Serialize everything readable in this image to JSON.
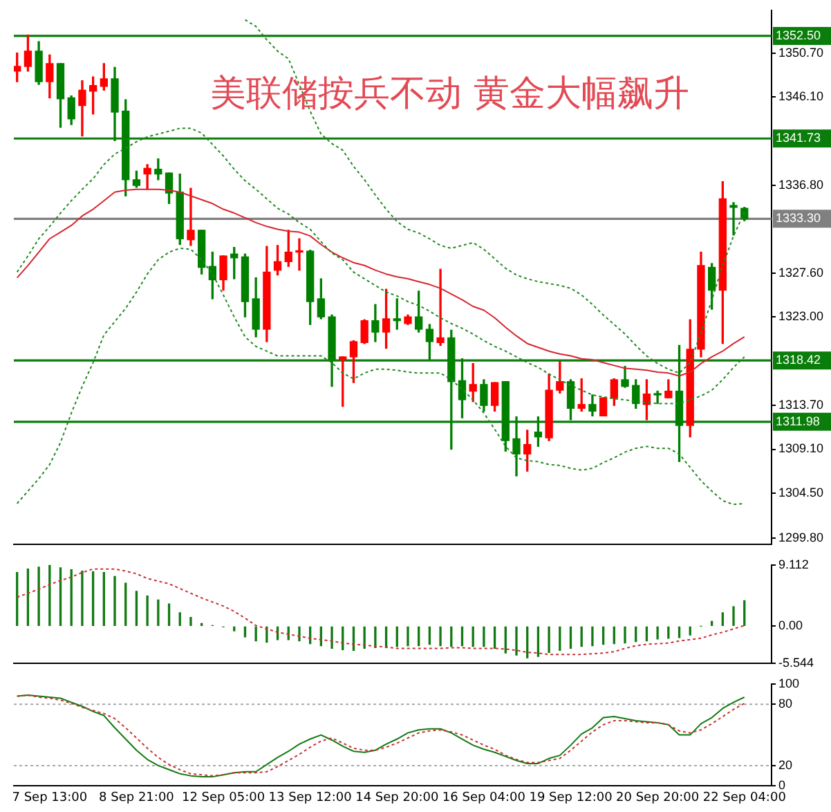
{
  "chart_data": [
    {
      "type": "candlestick",
      "title": "美联储按兵不动 黄金大幅飙升",
      "tick_labels": "y",
      "ohlc": [
        [
          1348.8,
          1350.7,
          1347.7,
          1349.3
        ],
        [
          1349.3,
          1352.6,
          1348.8,
          1350.9
        ],
        [
          1350.9,
          1351.9,
          1347.4,
          1347.7
        ],
        [
          1347.7,
          1350.5,
          1346.0,
          1349.6
        ],
        [
          1349.6,
          1349.6,
          1342.9,
          1345.9
        ],
        [
          1346.0,
          1346.2,
          1343.2,
          1343.8
        ],
        [
          1345.2,
          1347.8,
          1342.0,
          1346.8
        ],
        [
          1346.7,
          1348.2,
          1344.3,
          1347.3
        ],
        [
          1347.2,
          1349.6,
          1346.8,
          1348.0
        ],
        [
          1348.0,
          1349.2,
          1341.5,
          1344.5
        ],
        [
          1344.6,
          1345.8,
          1335.7,
          1337.4
        ],
        [
          1337.4,
          1338.3,
          1336.6,
          1336.8
        ],
        [
          1338.0,
          1339.0,
          1336.4,
          1338.6
        ],
        [
          1338.5,
          1339.6,
          1337.4,
          1338.0
        ],
        [
          1338.1,
          1338.1,
          1334.9,
          1336.0
        ],
        [
          1336.1,
          1338.0,
          1330.6,
          1331.2
        ],
        [
          1331.1,
          1336.5,
          1330.5,
          1332.1
        ],
        [
          1332.1,
          1332.1,
          1327.5,
          1328.2
        ],
        [
          1328.3,
          1329.8,
          1324.9,
          1326.9
        ],
        [
          1326.9,
          1329.4,
          1325.8,
          1329.4
        ],
        [
          1329.6,
          1330.3,
          1327.0,
          1329.2
        ],
        [
          1329.3,
          1329.6,
          1323.0,
          1324.6
        ],
        [
          1324.9,
          1327.1,
          1320.9,
          1321.7
        ],
        [
          1321.7,
          1330.4,
          1320.4,
          1327.7
        ],
        [
          1327.9,
          1330.5,
          1327.4,
          1328.8
        ],
        [
          1328.8,
          1332.1,
          1328.3,
          1329.8
        ],
        [
          1329.8,
          1331.2,
          1327.9,
          1329.9
        ],
        [
          1329.9,
          1330.0,
          1322.2,
          1324.6
        ],
        [
          1324.9,
          1327.0,
          1322.8,
          1323.0
        ],
        [
          1323.0,
          1323.2,
          1315.7,
          1318.5
        ],
        [
          1318.5,
          1318.8,
          1313.6,
          1318.8
        ],
        [
          1318.8,
          1320.5,
          1316.1,
          1320.4
        ],
        [
          1320.3,
          1322.7,
          1320.2,
          1322.6
        ],
        [
          1322.6,
          1324.3,
          1320.4,
          1321.4
        ],
        [
          1321.4,
          1325.9,
          1319.7,
          1322.8
        ],
        [
          1322.8,
          1324.9,
          1321.7,
          1322.6
        ],
        [
          1322.3,
          1323.2,
          1322.2,
          1323.0
        ],
        [
          1323.0,
          1325.7,
          1321.4,
          1321.7
        ],
        [
          1321.7,
          1322.2,
          1318.5,
          1320.4
        ],
        [
          1320.3,
          1328.0,
          1320.0,
          1320.8
        ],
        [
          1320.8,
          1321.6,
          1309.1,
          1316.2
        ],
        [
          1316.3,
          1318.6,
          1312.4,
          1314.3
        ],
        [
          1315.2,
          1318.1,
          1314.1,
          1315.9
        ],
        [
          1315.9,
          1316.4,
          1313.1,
          1313.7
        ],
        [
          1313.7,
          1316.1,
          1313.1,
          1316.1
        ],
        [
          1316.2,
          1316.2,
          1308.9,
          1310.0
        ],
        [
          1310.2,
          1312.5,
          1306.3,
          1308.6
        ],
        [
          1308.6,
          1311.1,
          1306.8,
          1309.6
        ],
        [
          1310.9,
          1312.5,
          1309.4,
          1310.4
        ],
        [
          1310.3,
          1317.0,
          1310.0,
          1315.3
        ],
        [
          1315.3,
          1318.3,
          1315.0,
          1316.2
        ],
        [
          1316.2,
          1316.4,
          1312.2,
          1313.4
        ],
        [
          1313.4,
          1316.5,
          1313.1,
          1313.8
        ],
        [
          1313.8,
          1314.8,
          1312.6,
          1313.1
        ],
        [
          1312.6,
          1314.5,
          1312.6,
          1314.5
        ],
        [
          1314.5,
          1316.5,
          1313.7,
          1316.4
        ],
        [
          1316.4,
          1317.8,
          1315.6,
          1315.7
        ],
        [
          1315.8,
          1316.4,
          1313.4,
          1313.9
        ],
        [
          1313.8,
          1316.4,
          1312.2,
          1314.9
        ],
        [
          1314.9,
          1315.2,
          1313.9,
          1314.8
        ],
        [
          1314.5,
          1316.4,
          1314.5,
          1315.2
        ],
        [
          1315.2,
          1320.0,
          1307.8,
          1311.6
        ],
        [
          1311.6,
          1322.7,
          1310.4,
          1319.6
        ],
        [
          1319.6,
          1329.8,
          1318.8,
          1328.4
        ],
        [
          1328.2,
          1328.6,
          1323.8,
          1325.8
        ],
        [
          1325.8,
          1337.2,
          1320.2,
          1335.4
        ],
        [
          1334.7,
          1335.0,
          1331.6,
          1334.5
        ],
        [
          1334.4,
          1334.5,
          1333.1,
          1333.3
        ]
      ],
      "colors": [
        "#ff0000",
        "#ff0000",
        "#008000",
        "#ff0000",
        "#008000",
        "#008000",
        "#ff0000",
        "#ff0000",
        "#ff0000",
        "#008000",
        "#008000",
        "#008000",
        "#ff0000",
        "#008000",
        "#008000",
        "#008000",
        "#ff0000",
        "#008000",
        "#008000",
        "#ff0000",
        "#008000",
        "#008000",
        "#008000",
        "#ff0000",
        "#ff0000",
        "#ff0000",
        "#ff0000",
        "#008000",
        "#008000",
        "#008000",
        "#ff0000",
        "#ff0000",
        "#ff0000",
        "#008000",
        "#ff0000",
        "#008000",
        "#ff0000",
        "#008000",
        "#008000",
        "#ff0000",
        "#008000",
        "#008000",
        "#ff0000",
        "#008000",
        "#ff0000",
        "#008000",
        "#008000",
        "#ff0000",
        "#008000",
        "#ff0000",
        "#ff0000",
        "#008000",
        "#ff0000",
        "#008000",
        "#ff0000",
        "#ff0000",
        "#008000",
        "#008000",
        "#ff0000",
        "#008000",
        "#ff0000",
        "#008000",
        "#ff0000",
        "#ff0000",
        "#008000",
        "#ff0000",
        "#008000",
        "#008000"
      ],
      "series": [
        {
          "type": "line",
          "color": "#d9252e",
          "values": [
            1327.1,
            1328.4,
            1329.8,
            1331.2,
            1331.9,
            1332.6,
            1333.6,
            1334.3,
            1335.2,
            1336.1,
            1336.3,
            1336.4,
            1336.4,
            1336.4,
            1336.3,
            1336.1,
            1335.7,
            1335.3,
            1334.9,
            1334.3,
            1333.9,
            1333.4,
            1332.9,
            1332.5,
            1332.2,
            1332.0,
            1331.9,
            1331.5,
            1330.6,
            1329.8,
            1329.2,
            1328.7,
            1328.4,
            1327.9,
            1327.5,
            1327.2,
            1327.0,
            1326.7,
            1326.4,
            1326.0,
            1325.4,
            1324.8,
            1324.1,
            1323.7,
            1322.9,
            1321.9,
            1321.0,
            1320.2,
            1319.8,
            1319.4,
            1319.1,
            1318.9,
            1318.6,
            1318.5,
            1318.2,
            1317.9,
            1317.6,
            1317.5,
            1317.4,
            1317.2,
            1317.1,
            1316.8,
            1317.2,
            1318.1,
            1318.8,
            1319.4,
            1320.2,
            1320.9
          ]
        },
        {
          "type": "line",
          "color": "#208a20",
          "line_style": "dashed",
          "values": [
            null,
            null,
            null,
            null,
            null,
            null,
            null,
            null,
            null,
            null,
            null,
            null,
            null,
            null,
            null,
            null,
            null,
            null,
            null,
            null,
            null,
            1354.2,
            1353.5,
            1352.1,
            1350.9,
            1350.1,
            1347.4,
            1344.6,
            1342.2,
            1341.2,
            1340.5,
            1338.8,
            1337.4,
            1335.8,
            1334.3,
            1333.0,
            1332.2,
            1331.8,
            1331.2,
            1330.5,
            1330.2,
            1330.5,
            1330.8,
            1330.1,
            1329.1,
            1328.1,
            1327.4,
            1327.0,
            1326.7,
            1326.5,
            1326.3,
            1326.0,
            1325.3,
            1324.3,
            1323.2,
            1322.2,
            1321.2,
            1320.0,
            1318.9,
            1318.1,
            1317.5,
            1317.1,
            1318.2,
            1321.3,
            1324.8,
            1328.4,
            1331.5,
            1334.0
          ]
        },
        {
          "type": "line",
          "color": "#208a20",
          "line_style": "dashed",
          "values": [
            1327.7,
            1329.4,
            1331.2,
            1332.5,
            1333.9,
            1335.2,
            1336.4,
            1337.5,
            1339.0,
            1340.1,
            1340.7,
            1341.4,
            1341.9,
            1342.2,
            1342.5,
            1342.8,
            1342.8,
            1342.3,
            1341.1,
            1339.9,
            1338.5,
            1337.3,
            1336.4,
            1335.4,
            1334.4,
            1333.8,
            1332.9,
            1332.2,
            1330.9,
            1329.7,
            1329.0,
            1327.7,
            1327.0,
            1326.3,
            1325.6,
            1325.2,
            1324.6,
            1324.2,
            1323.6,
            1322.9,
            1322.3,
            1321.8,
            1321.2,
            1320.5,
            1319.9,
            1319.4,
            1318.8,
            1318.2,
            1317.7,
            1317.0,
            1316.4,
            1315.8,
            1315.3,
            1314.8,
            1314.6,
            1314.4,
            1314.3,
            1314.1,
            1314.0,
            1313.9,
            1313.9,
            1313.9,
            1314.3,
            1314.7,
            1315.3,
            1316.4,
            1317.7,
            1318.8
          ]
        },
        {
          "type": "line",
          "color": "#208a20",
          "line_style": "dashed",
          "values": [
            1303.4,
            1304.7,
            1306.0,
            1307.5,
            1309.8,
            1312.9,
            1315.7,
            1318.2,
            1321.1,
            1322.5,
            1323.9,
            1325.6,
            1327.5,
            1329.0,
            1329.8,
            1330.2,
            1330.1,
            1329.0,
            1327.5,
            1325.3,
            1323.0,
            1320.9,
            1319.9,
            1319.4,
            1318.9,
            1318.9,
            1318.9,
            1318.9,
            1318.9,
            1318.2,
            1317.1,
            1316.5,
            1317.1,
            1317.5,
            1317.5,
            1317.4,
            1317.2,
            1317.1,
            1317.1,
            1317.1,
            1316.4,
            1315.4,
            1314.3,
            1312.9,
            1311.2,
            1309.4,
            1308.2,
            1307.9,
            1307.8,
            1307.5,
            1307.4,
            1307.1,
            1306.9,
            1307.1,
            1307.7,
            1308.2,
            1308.8,
            1309.2,
            1309.4,
            1309.2,
            1309.2,
            1308.6,
            1307.2,
            1305.8,
            1304.7,
            1303.7,
            1303.3,
            1303.4
          ]
        }
      ],
      "ylim": [
        1299.1,
        1355.2
      ],
      "yticks": [
        {
          "value": 1299.8,
          "label": "1299.80"
        },
        {
          "value": 1304.5,
          "label": "1304.50"
        },
        {
          "value": 1309.1,
          "label": "1309.10"
        },
        {
          "value": 1313.7,
          "label": "1313.70"
        },
        {
          "value": 1323,
          "label": "1323.00"
        },
        {
          "value": 1327.6,
          "label": "1327.60"
        },
        {
          "value": 1336.8,
          "label": "1336.80"
        },
        {
          "value": 1346.1,
          "label": "1346.10"
        },
        {
          "value": 1350.7,
          "label": "1350.70"
        }
      ],
      "ref_lines": [
        {
          "axis": "y",
          "value": 1352.5,
          "label": "1352.50",
          "color": "#0a7d0a"
        },
        {
          "axis": "y",
          "value": 1341.73,
          "label": "1341.73",
          "color": "#0a7d0a"
        },
        {
          "axis": "y",
          "value": 1318.42,
          "label": "1318.42",
          "color": "#0a7d0a"
        },
        {
          "axis": "y",
          "value": 1311.98,
          "label": "1311.98",
          "color": "#0a7d0a"
        },
        {
          "axis": "y",
          "value": 1333.3,
          "label": "1333.30",
          "color": "#808080"
        }
      ]
    },
    {
      "type": "bar",
      "tick_labels": "y",
      "series": [
        {
          "type": "bar",
          "color": "#117a11",
          "values": [
            8.0,
            8.5,
            8.8,
            9.1,
            8.7,
            8.4,
            8.2,
            8.1,
            8.0,
            7.4,
            6.4,
            5.2,
            4.5,
            3.9,
            3.3,
            2.0,
            1.3,
            0.4,
            0.1,
            -0.1,
            -0.7,
            -1.6,
            -2.2,
            -2.4,
            -2.0,
            -2.0,
            -2.2,
            -2.6,
            -2.9,
            -3.3,
            -3.5,
            -3.6,
            -3.3,
            -3.2,
            -3.2,
            -3.0,
            -2.9,
            -2.9,
            -2.7,
            -2.9,
            -3.0,
            -2.9,
            -3.0,
            -3.0,
            -3.3,
            -4.0,
            -4.3,
            -4.7,
            -4.5,
            -3.9,
            -3.6,
            -3.3,
            -3.0,
            -2.9,
            -2.7,
            -2.6,
            -2.5,
            -2.3,
            -2.2,
            -1.9,
            -1.8,
            -1.7,
            -1.3,
            0.0,
            0.7,
            2.0,
            2.9,
            3.8
          ]
        },
        {
          "type": "line",
          "color": "#c83232",
          "line_style": "dashed",
          "values": [
            4.3,
            4.9,
            5.5,
            6.2,
            6.8,
            7.3,
            8.0,
            8.5,
            8.5,
            8.5,
            8.2,
            7.8,
            7.1,
            6.7,
            6.3,
            5.6,
            4.9,
            4.2,
            3.6,
            3.0,
            2.2,
            1.2,
            0.1,
            -0.4,
            -0.9,
            -1.2,
            -1.5,
            -1.8,
            -2.0,
            -2.2,
            -2.5,
            -2.7,
            -2.8,
            -3.0,
            -3.1,
            -3.3,
            -3.3,
            -3.3,
            -3.3,
            -3.3,
            -3.2,
            -3.2,
            -3.3,
            -3.3,
            -3.3,
            -3.4,
            -3.6,
            -3.9,
            -4.0,
            -4.2,
            -4.2,
            -4.2,
            -4.2,
            -4.1,
            -4.0,
            -3.8,
            -3.3,
            -2.9,
            -2.7,
            -2.6,
            -2.5,
            -2.2,
            -2.0,
            -1.8,
            -1.3,
            -0.9,
            -0.4,
            0.1
          ]
        }
      ],
      "ylim": [
        -5.544,
        9.112
      ],
      "yticks": [
        -5.544,
        {
          "value": 0,
          "label": "0.00"
        },
        9.112
      ]
    },
    {
      "type": "line",
      "categories": [
        null,
        null,
        null,
        "7 Sep 13:00",
        null,
        null,
        null,
        null,
        null,
        null,
        null,
        "8 Sep 21:00",
        null,
        null,
        null,
        null,
        null,
        null,
        null,
        "12 Sep 05:00",
        null,
        null,
        null,
        null,
        null,
        null,
        null,
        "13 Sep 12:00",
        null,
        null,
        null,
        null,
        null,
        null,
        null,
        "14 Sep 20:00",
        null,
        null,
        null,
        null,
        null,
        null,
        null,
        "16 Sep 04:00",
        null,
        null,
        null,
        null,
        null,
        null,
        null,
        "19 Sep 12:00",
        null,
        null,
        null,
        null,
        null,
        null,
        null,
        "20 Sep 20:00",
        null,
        null,
        null,
        null,
        null,
        null,
        null,
        "22 Sep 04:00"
      ],
      "series": [
        {
          "color": "#117a11",
          "values": [
            88,
            89,
            88,
            87,
            86,
            82,
            78,
            73,
            69,
            57,
            46,
            35,
            26,
            20,
            16,
            12,
            10,
            9,
            9,
            11,
            13,
            14,
            14,
            21,
            28,
            34,
            41,
            46,
            50,
            45,
            39,
            34,
            33,
            35,
            41,
            46,
            52,
            55,
            56,
            56,
            52,
            46,
            40,
            36,
            33,
            29,
            25,
            22,
            22,
            27,
            30,
            40,
            51,
            57,
            67,
            68,
            66,
            64,
            63,
            62,
            60,
            50,
            50,
            61,
            67,
            76,
            82,
            87
          ]
        },
        {
          "color": "#c83232",
          "line_style": "dashed",
          "values": [
            88,
            89,
            87,
            86,
            84,
            81,
            77,
            74,
            71,
            66,
            57,
            47,
            37,
            28,
            21,
            16,
            12,
            11,
            10,
            11,
            13,
            13,
            13,
            14,
            19,
            25,
            31,
            38,
            44,
            47,
            42,
            37,
            35,
            35,
            38,
            42,
            47,
            52,
            54,
            55,
            53,
            50,
            45,
            40,
            36,
            30,
            26,
            23,
            23,
            25,
            27,
            35,
            44,
            53,
            60,
            64,
            64,
            63,
            62,
            62,
            60,
            54,
            52,
            55,
            61,
            68,
            75,
            81
          ]
        }
      ],
      "ylim": [
        0,
        100
      ],
      "yticks": [
        0,
        20,
        80,
        100
      ],
      "ref_lines": [
        {
          "axis": "y",
          "value": 20,
          "color": "#a8a8a8",
          "line_style": "dashed"
        },
        {
          "axis": "y",
          "value": 80,
          "color": "#a8a8a8",
          "line_style": "dashed"
        }
      ]
    }
  ]
}
